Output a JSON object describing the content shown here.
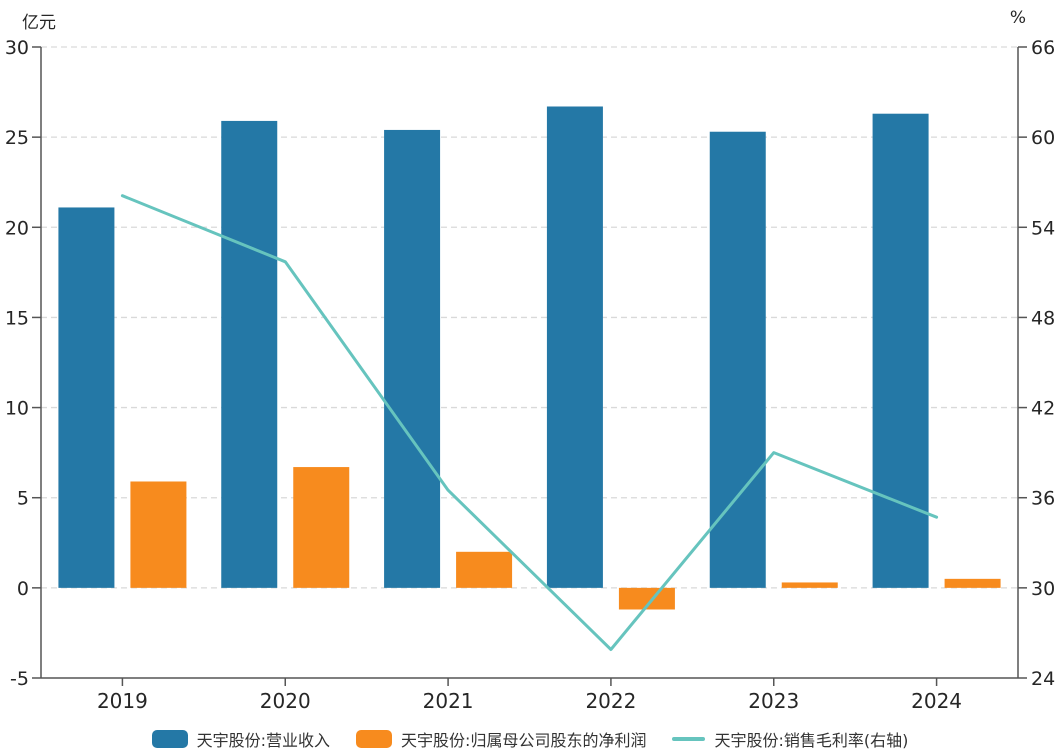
{
  "page": {
    "background": "#ffffff"
  },
  "chart_data": {
    "type": "combo",
    "title": "",
    "categories": [
      "2019",
      "2020",
      "2021",
      "2022",
      "2023",
      "2024"
    ],
    "series": [
      {
        "id": "revenue",
        "name": "天宇股份:营业收入",
        "type": "bar",
        "axis": "left",
        "color": "#2478A6",
        "values": [
          21.1,
          25.9,
          25.4,
          26.7,
          25.3,
          26.3
        ]
      },
      {
        "id": "net-profit",
        "name": "天宇股份:归属母公司股东的净利润",
        "type": "bar",
        "axis": "left",
        "color": "#F78B1E",
        "values": [
          5.9,
          6.7,
          2.0,
          -1.2,
          0.3,
          0.5
        ]
      },
      {
        "id": "gross-margin",
        "name": "天宇股份:销售毛利率(右轴)",
        "type": "line",
        "axis": "right",
        "color": "#66C4BE",
        "values": [
          56.1,
          51.7,
          36.5,
          25.9,
          39.0,
          34.7
        ]
      }
    ],
    "ylabel_left": "亿元",
    "ylabel_right": "%",
    "left_ylim": [
      -5,
      30
    ],
    "right_ylim": [
      24,
      66
    ],
    "left_ticks": [
      30,
      25,
      20,
      15,
      10,
      5,
      0,
      -5
    ],
    "right_ticks": [
      66,
      60,
      54,
      48,
      42,
      36,
      30,
      24
    ],
    "grid": true,
    "grid_color": "#d9d9d9",
    "axis_color": "#555555",
    "text_color": "#262626",
    "legend_position": "bottom"
  }
}
